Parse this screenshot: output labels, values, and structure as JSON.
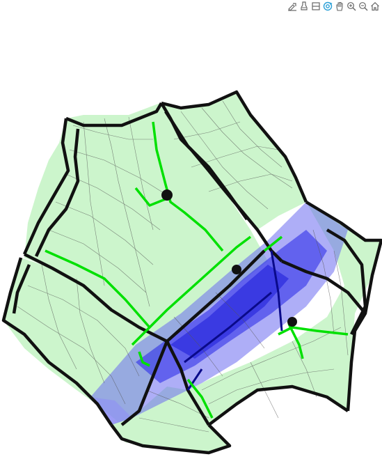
{
  "window": {
    "kind": "3D plot viewer"
  },
  "modebar": {
    "buttons": [
      {
        "name": "zoom-box-icon"
      },
      {
        "name": "download-icon"
      },
      {
        "name": "projection-icon"
      },
      {
        "name": "orbit-icon",
        "active": true
      },
      {
        "name": "pan-icon"
      },
      {
        "name": "zoom-in-icon"
      },
      {
        "name": "zoom-out-icon"
      },
      {
        "name": "home-icon"
      }
    ],
    "icon_color": "#666666",
    "active_color": "#2a9fd6"
  },
  "scene": {
    "surface_color": "#ccf5cc",
    "edge_color": "#111111",
    "highlight_color": "#00e000",
    "volume_color": "#2828ee"
  }
}
